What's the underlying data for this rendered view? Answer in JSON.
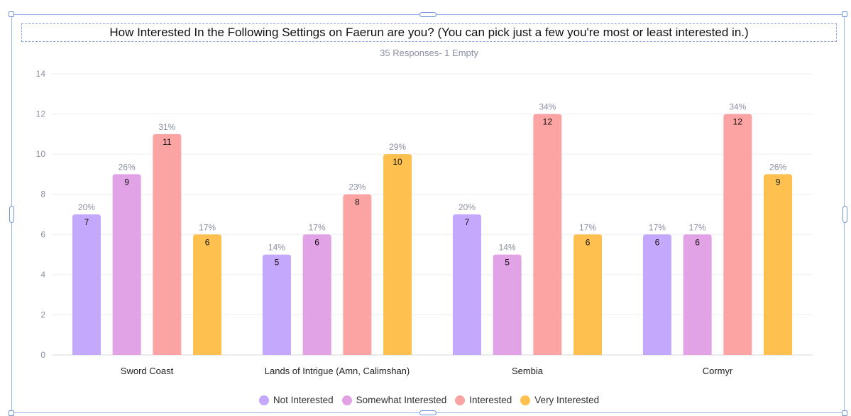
{
  "chart_data": {
    "type": "bar",
    "title": "How Interested In the Following Settings on Faerun are you? (You can pick just a few you're most or least interested in.)",
    "subtitle": "35 Responses- 1 Empty",
    "categories": [
      "Sword Coast",
      "Lands of Intrigue (Amn, Calimshan)",
      "Sembia",
      "Cormyr"
    ],
    "series": [
      {
        "name": "Not Interested",
        "color": "#c4a8fb",
        "values": [
          7,
          5,
          7,
          6
        ],
        "percent_labels": [
          "20%",
          "14%",
          "20%",
          "17%"
        ]
      },
      {
        "name": "Somewhat Interested",
        "color": "#e1a2e6",
        "values": [
          9,
          6,
          5,
          6
        ],
        "percent_labels": [
          "26%",
          "17%",
          "14%",
          "17%"
        ]
      },
      {
        "name": "Interested",
        "color": "#fca3a3",
        "values": [
          11,
          8,
          12,
          12
        ],
        "percent_labels": [
          "31%",
          "23%",
          "34%",
          "34%"
        ]
      },
      {
        "name": "Very Interested",
        "color": "#fec150",
        "values": [
          6,
          10,
          6,
          9
        ],
        "percent_labels": [
          "17%",
          "29%",
          "17%",
          "26%"
        ]
      }
    ],
    "ylim": [
      0,
      14
    ],
    "yticks": [
      0,
      2,
      4,
      6,
      8,
      10,
      12,
      14
    ],
    "grid": true,
    "legend_position": "bottom"
  }
}
